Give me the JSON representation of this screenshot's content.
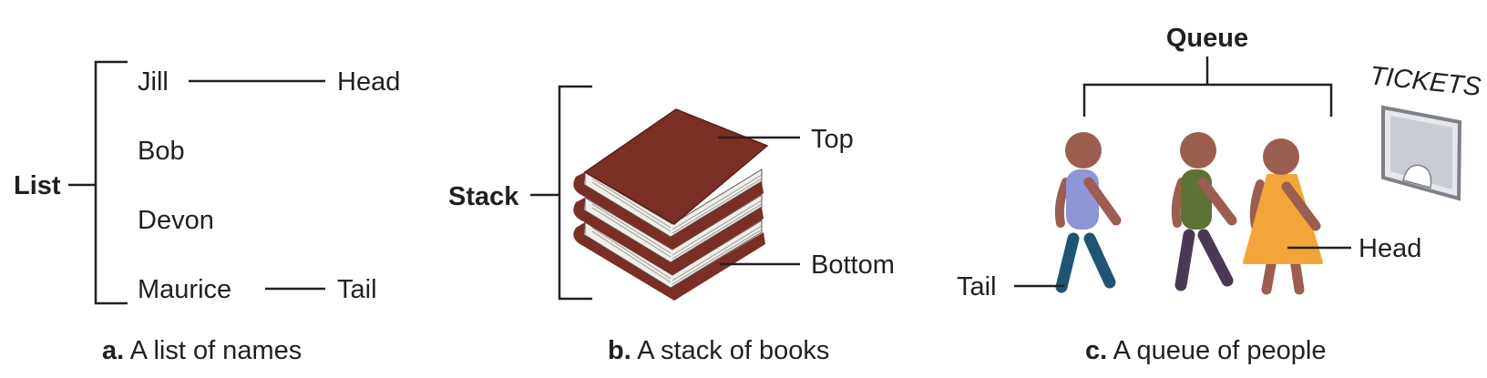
{
  "panel_a": {
    "title": "List",
    "items": [
      "Jill",
      "Bob",
      "Devon",
      "Maurice"
    ],
    "head_label": "Head",
    "tail_label": "Tail",
    "caption_letter": "a.",
    "caption_text": " A list of names"
  },
  "panel_b": {
    "title": "Stack",
    "top_label": "Top",
    "bottom_label": "Bottom",
    "caption_letter": "b.",
    "caption_text": " A stack of books",
    "book_color": "#7a2e26"
  },
  "panel_c": {
    "title": "Queue",
    "tail_label": "Tail",
    "head_label": "Head",
    "sign_text": "TICKETS",
    "caption_letter": "c.",
    "caption_text": " A queue of people",
    "skin_color": "#9c5e50",
    "shirt_colors": [
      "#8e96d6",
      "#5e7234",
      "#f2a63a"
    ],
    "pants_colors": [
      "#1f5573",
      "#4b3954"
    ]
  }
}
